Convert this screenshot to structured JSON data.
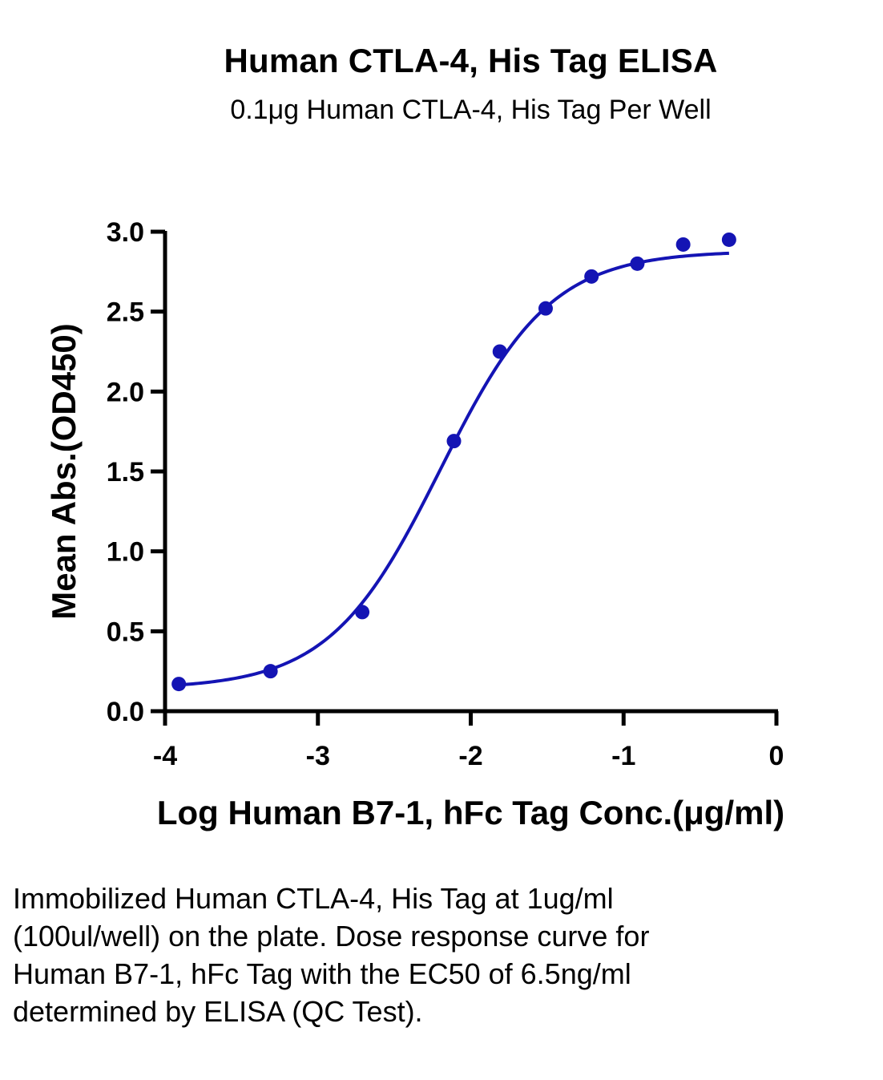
{
  "chart_data": {
    "type": "scatter",
    "title": "Human CTLA-4, His Tag ELISA",
    "subtitle": "0.1μg Human CTLA-4, His Tag Per Well",
    "xlabel": "Log Human B7-1, hFc Tag Conc.(μg/ml)",
    "ylabel": "Mean Abs.(OD450)",
    "xlim": [
      -4,
      0
    ],
    "ylim": [
      0,
      3.0
    ],
    "x_ticks": [
      "-4",
      "-3",
      "-2",
      "-1",
      "0"
    ],
    "y_ticks": [
      "0.0",
      "0.5",
      "1.0",
      "1.5",
      "2.0",
      "2.5",
      "3.0"
    ],
    "grid": false,
    "series": [
      {
        "x": [
          -3.91,
          -3.31,
          -2.71,
          -2.11,
          -1.81,
          -1.51,
          -1.21,
          -0.91,
          -0.61,
          -0.31
        ],
        "y": [
          0.17,
          0.25,
          0.62,
          1.69,
          2.25,
          2.52,
          2.72,
          2.8,
          2.92,
          2.95
        ],
        "color": "#1414b4",
        "fit": "4PL sigmoidal",
        "fit_params": {
          "bottom": 0.14,
          "top": 2.88,
          "logEC50": -2.2,
          "hill": 1.2
        }
      }
    ]
  },
  "caption": "Immobilized Human CTLA-4, His Tag at 1ug/ml (100ul/well) on the plate. Dose response curve for Human B7-1, hFc Tag with the EC50 of 6.5ng/ml determined by ELISA (QC Test).",
  "colors": {
    "series": "#1414b4",
    "axes": "#000000",
    "background": "#ffffff"
  }
}
